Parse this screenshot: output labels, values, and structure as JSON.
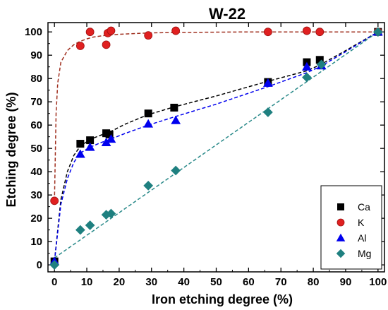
{
  "chart_data": {
    "type": "scatter",
    "title": "W-22",
    "xlabel": "Iron etching degree (%)",
    "ylabel": "Etching degree (%)",
    "xlim": [
      -2,
      102
    ],
    "ylim": [
      -3,
      104
    ],
    "xticks": [
      0,
      10,
      20,
      30,
      40,
      50,
      60,
      70,
      80,
      90,
      100
    ],
    "yticks": [
      0,
      10,
      20,
      30,
      40,
      50,
      60,
      70,
      80,
      90,
      100
    ],
    "grid": false,
    "legend_position": "bottom-right",
    "series": [
      {
        "name": "Ca",
        "marker": "square",
        "color": "#000000",
        "fit_color": "#000000",
        "x": [
          0,
          8,
          11,
          16,
          17,
          29,
          37,
          66,
          78,
          82,
          100
        ],
        "y": [
          1.5,
          52,
          53.5,
          56.5,
          56,
          65,
          67.5,
          78.5,
          87,
          88,
          100
        ],
        "fit": {
          "x": [
            0,
            2,
            4,
            6,
            8,
            11,
            14,
            17,
            22,
            29,
            37,
            50,
            66,
            78,
            82,
            90,
            100
          ],
          "y": [
            1.5,
            28,
            40,
            47,
            51,
            53.8,
            55.5,
            57,
            60.5,
            64.5,
            67.8,
            72.5,
            78.8,
            83.3,
            85.8,
            92,
            100
          ]
        }
      },
      {
        "name": "K",
        "marker": "circle",
        "color": "#e02020",
        "fit_color": "#a03020",
        "x": [
          0,
          8,
          11,
          16,
          16.5,
          17.5,
          29,
          37.5,
          66,
          78,
          82,
          100
        ],
        "y": [
          27.5,
          94,
          100,
          94.5,
          99.5,
          100.5,
          98.5,
          100.5,
          100,
          100.5,
          100,
          100
        ],
        "fit": {
          "x": [
            0,
            0.5,
            1,
            2,
            4,
            6,
            8,
            10,
            12,
            15,
            20,
            30,
            40,
            60,
            80,
            100
          ],
          "y": [
            27.5,
            65,
            78,
            87,
            92,
            94.5,
            96,
            97,
            97.8,
            98.4,
            99,
            99.6,
            99.8,
            100,
            100,
            100
          ]
        }
      },
      {
        "name": "Al",
        "marker": "triangle",
        "color": "#0000ee",
        "fit_color": "#0000ee",
        "x": [
          0,
          8,
          11,
          16,
          17.5,
          29,
          37.5,
          66,
          78,
          82.5,
          100
        ],
        "y": [
          1.5,
          47.5,
          50.5,
          52.5,
          54,
          60.5,
          62,
          78,
          85,
          85.5,
          100
        ],
        "fit": {
          "x": [
            0,
            2,
            4,
            6,
            8,
            11,
            14,
            17,
            22,
            29,
            37,
            50,
            66,
            78,
            82,
            90,
            100
          ],
          "y": [
            1.5,
            26,
            37,
            44,
            48,
            50.5,
            52.3,
            53.8,
            56.5,
            60,
            63.5,
            69,
            76.5,
            82.5,
            85,
            91.5,
            100
          ]
        }
      },
      {
        "name": "Mg",
        "marker": "diamond",
        "color": "#1f8080",
        "fit_color": "#2a8a8a",
        "x": [
          0,
          8,
          11,
          16,
          17.5,
          29,
          37.5,
          66,
          78,
          82.5,
          100
        ],
        "y": [
          0,
          15,
          17,
          21.5,
          22,
          34,
          40.5,
          65.5,
          80.5,
          86,
          100
        ],
        "fit": {
          "x": [
            0,
            100
          ],
          "y": [
            3,
            100
          ]
        }
      }
    ]
  }
}
